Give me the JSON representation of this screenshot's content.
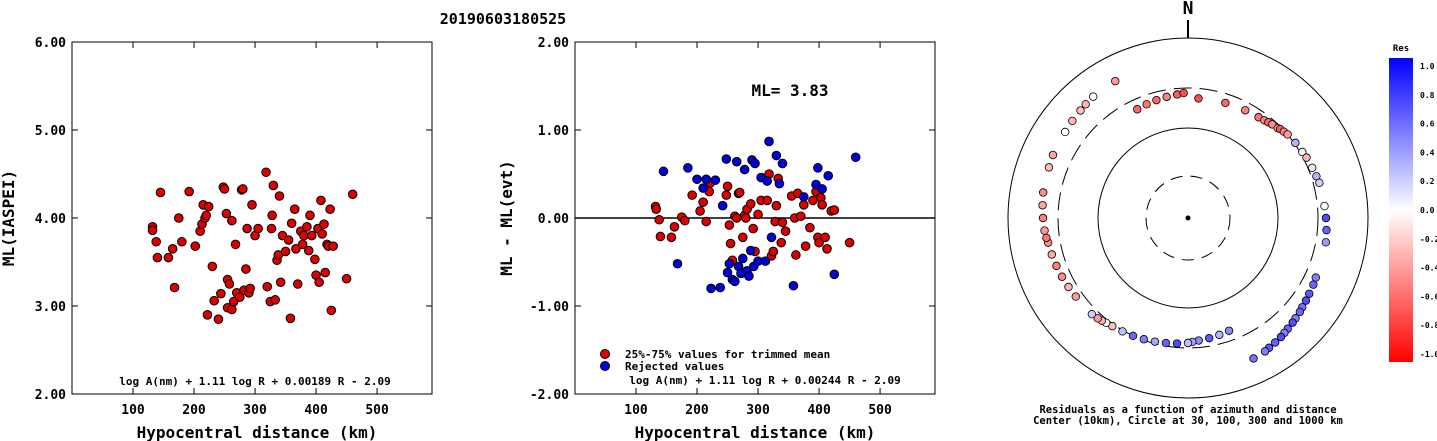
{
  "title": "20190603180525",
  "chart_data": [
    {
      "type": "scatter",
      "xlabel": "Hypocentral distance (km)",
      "ylabel": "ML(IASPEI)",
      "xlim": [
        0,
        590
      ],
      "ylim": [
        2.0,
        6.0
      ],
      "x_ticks": [
        "100",
        "200",
        "300",
        "400",
        "500"
      ],
      "y_ticks": [
        "2.00",
        "3.00",
        "4.00",
        "5.00",
        "6.00"
      ],
      "formula": "log A(nm) + 1.11 log R + 0.00189 R - 2.09",
      "points": [
        [
          132,
          3.9
        ],
        [
          132,
          3.86
        ],
        [
          138,
          3.73
        ],
        [
          140,
          3.55
        ],
        [
          145,
          4.29
        ],
        [
          158,
          3.55
        ],
        [
          165,
          3.65
        ],
        [
          168,
          3.21
        ],
        [
          175,
          4.0
        ],
        [
          180,
          3.73
        ],
        [
          192,
          4.3
        ],
        [
          202,
          3.68
        ],
        [
          210,
          3.85
        ],
        [
          213,
          3.93
        ],
        [
          215,
          4.15
        ],
        [
          218,
          4.0
        ],
        [
          220,
          4.03
        ],
        [
          222,
          2.9
        ],
        [
          224,
          4.13
        ],
        [
          230,
          3.45
        ],
        [
          233,
          3.06
        ],
        [
          240,
          2.85
        ],
        [
          244,
          3.14
        ],
        [
          248,
          4.35
        ],
        [
          250,
          4.33
        ],
        [
          253,
          4.05
        ],
        [
          255,
          3.3
        ],
        [
          255,
          2.98
        ],
        [
          258,
          3.25
        ],
        [
          262,
          3.97
        ],
        [
          262,
          2.96
        ],
        [
          265,
          3.05
        ],
        [
          268,
          3.7
        ],
        [
          270,
          3.15
        ],
        [
          275,
          3.1
        ],
        [
          278,
          4.32
        ],
        [
          280,
          4.33
        ],
        [
          282,
          3.18
        ],
        [
          285,
          3.42
        ],
        [
          287,
          3.88
        ],
        [
          290,
          3.15
        ],
        [
          292,
          3.2
        ],
        [
          295,
          4.15
        ],
        [
          300,
          3.8
        ],
        [
          305,
          3.88
        ],
        [
          318,
          4.52
        ],
        [
          320,
          3.22
        ],
        [
          325,
          3.05
        ],
        [
          327,
          3.88
        ],
        [
          328,
          4.03
        ],
        [
          330,
          4.37
        ],
        [
          333,
          3.07
        ],
        [
          336,
          3.52
        ],
        [
          338,
          3.58
        ],
        [
          340,
          4.25
        ],
        [
          342,
          3.27
        ],
        [
          345,
          3.8
        ],
        [
          350,
          3.62
        ],
        [
          355,
          3.75
        ],
        [
          358,
          2.86
        ],
        [
          360,
          3.94
        ],
        [
          365,
          4.1
        ],
        [
          367,
          3.65
        ],
        [
          370,
          3.25
        ],
        [
          375,
          3.85
        ],
        [
          378,
          3.7
        ],
        [
          380,
          3.8
        ],
        [
          385,
          3.9
        ],
        [
          388,
          3.63
        ],
        [
          390,
          4.03
        ],
        [
          393,
          3.8
        ],
        [
          398,
          3.53
        ],
        [
          400,
          3.35
        ],
        [
          403,
          3.88
        ],
        [
          405,
          3.27
        ],
        [
          408,
          4.2
        ],
        [
          410,
          3.82
        ],
        [
          413,
          3.93
        ],
        [
          415,
          3.38
        ],
        [
          418,
          3.7
        ],
        [
          420,
          3.68
        ],
        [
          423,
          4.1
        ],
        [
          425,
          2.95
        ],
        [
          428,
          3.68
        ],
        [
          450,
          3.31
        ],
        [
          460,
          4.27
        ]
      ]
    },
    {
      "type": "scatter",
      "xlabel": "Hypocentral distance (km)",
      "ylabel": "ML - ML(evt)",
      "xlim": [
        0,
        590
      ],
      "ylim": [
        -2.0,
        2.0
      ],
      "x_ticks": [
        "100",
        "200",
        "300",
        "400",
        "500"
      ],
      "y_ticks": [
        "-2.00",
        "-1.00",
        "0.00",
        "1.00",
        "2.00"
      ],
      "annotation": "ML= 3.83",
      "formula": "log A(nm) + 1.11 log R + 0.00244 R - 2.09",
      "legend": [
        "25%-75% values for trimmed mean",
        "Rejected values"
      ],
      "series": [
        {
          "name": "25%-75% values for trimmed mean",
          "color": "#dd0000",
          "points": [
            [
              132,
              0.13
            ],
            [
              133,
              0.1
            ],
            [
              138,
              -0.02
            ],
            [
              140,
              -0.21
            ],
            [
              158,
              -0.22
            ],
            [
              163,
              -0.1
            ],
            [
              175,
              0.01
            ],
            [
              180,
              -0.03
            ],
            [
              192,
              0.26
            ],
            [
              205,
              0.08
            ],
            [
              210,
              0.18
            ],
            [
              215,
              -0.04
            ],
            [
              220,
              0.3
            ],
            [
              222,
              0.4
            ],
            [
              248,
              0.26
            ],
            [
              250,
              0.36
            ],
            [
              253,
              -0.08
            ],
            [
              255,
              -0.29
            ],
            [
              258,
              -0.48
            ],
            [
              262,
              0.02
            ],
            [
              265,
              0.0
            ],
            [
              268,
              0.28
            ],
            [
              270,
              0.29
            ],
            [
              275,
              -0.22
            ],
            [
              278,
              0.03
            ],
            [
              280,
              0.0
            ],
            [
              282,
              0.1
            ],
            [
              288,
              0.16
            ],
            [
              292,
              -0.12
            ],
            [
              295,
              -0.38
            ],
            [
              300,
              0.04
            ],
            [
              305,
              0.2
            ],
            [
              315,
              0.2
            ],
            [
              318,
              0.5
            ],
            [
              322,
              -0.43
            ],
            [
              325,
              -0.38
            ],
            [
              328,
              -0.04
            ],
            [
              330,
              0.14
            ],
            [
              333,
              0.45
            ],
            [
              338,
              -0.28
            ],
            [
              340,
              -0.05
            ],
            [
              345,
              -0.15
            ],
            [
              355,
              0.25
            ],
            [
              360,
              0.0
            ],
            [
              362,
              -0.42
            ],
            [
              365,
              0.28
            ],
            [
              370,
              0.02
            ],
            [
              375,
              0.15
            ],
            [
              378,
              -0.32
            ],
            [
              385,
              -0.11
            ],
            [
              390,
              0.2
            ],
            [
              395,
              0.3
            ],
            [
              398,
              -0.22
            ],
            [
              400,
              -0.28
            ],
            [
              403,
              0.23
            ],
            [
              405,
              0.15
            ],
            [
              410,
              -0.22
            ],
            [
              413,
              -0.35
            ],
            [
              420,
              0.08
            ],
            [
              425,
              0.09
            ],
            [
              450,
              -0.28
            ]
          ]
        },
        {
          "name": "Rejected values",
          "color": "#0000dd",
          "points": [
            [
              145,
              0.53
            ],
            [
              168,
              -0.52
            ],
            [
              185,
              0.57
            ],
            [
              200,
              0.44
            ],
            [
              210,
              0.34
            ],
            [
              215,
              0.44
            ],
            [
              223,
              -0.8
            ],
            [
              230,
              0.43
            ],
            [
              238,
              -0.79
            ],
            [
              242,
              0.14
            ],
            [
              248,
              0.67
            ],
            [
              250,
              -0.62
            ],
            [
              253,
              -0.52
            ],
            [
              258,
              -0.7
            ],
            [
              262,
              -0.72
            ],
            [
              265,
              0.64
            ],
            [
              268,
              -0.55
            ],
            [
              272,
              -0.63
            ],
            [
              275,
              -0.46
            ],
            [
              278,
              0.55
            ],
            [
              282,
              -0.6
            ],
            [
              285,
              -0.66
            ],
            [
              288,
              -0.37
            ],
            [
              290,
              0.66
            ],
            [
              293,
              -0.55
            ],
            [
              295,
              0.62
            ],
            [
              300,
              -0.49
            ],
            [
              305,
              0.46
            ],
            [
              312,
              -0.49
            ],
            [
              315,
              0.42
            ],
            [
              318,
              0.87
            ],
            [
              322,
              -0.22
            ],
            [
              330,
              0.71
            ],
            [
              335,
              0.39
            ],
            [
              340,
              0.62
            ],
            [
              358,
              -0.77
            ],
            [
              375,
              0.24
            ],
            [
              395,
              0.38
            ],
            [
              398,
              0.57
            ],
            [
              405,
              0.33
            ],
            [
              415,
              0.48
            ],
            [
              425,
              -0.64
            ],
            [
              460,
              0.69
            ]
          ]
        }
      ]
    },
    {
      "type": "scatter",
      "subtype": "polar",
      "north_label": "N",
      "caption_lines": [
        "Residuals as a function of azimuth and distance",
        "Center (10km), Circle at 30, 100, 300 and 1000 km"
      ],
      "colorbar": {
        "title": "Res",
        "labels": [
          "1.0",
          "0.8",
          "0.6",
          "0.4",
          "0.2",
          "0.0",
          "-0.2",
          "-0.4",
          "-0.6",
          "-0.8",
          "-1.0"
        ],
        "max_color": "#0000ff",
        "min_color": "#ff0000"
      },
      "points": [
        [
          5,
          -0.7
        ],
        [
          18,
          -0.6
        ],
        [
          28,
          -0.5
        ],
        [
          35,
          -0.55
        ],
        [
          38,
          -0.5
        ],
        [
          40,
          -0.6
        ],
        [
          42,
          -0.45
        ],
        [
          45,
          -0.35
        ],
        [
          46,
          -0.65
        ],
        [
          48,
          -0.5
        ],
        [
          50,
          -0.4
        ],
        [
          55,
          0.3
        ],
        [
          60,
          0.0
        ],
        [
          63,
          -0.3
        ],
        [
          68,
          0.1
        ],
        [
          72,
          0.3
        ],
        [
          75,
          0.2
        ],
        [
          85,
          0.0
        ],
        [
          90,
          0.7
        ],
        [
          95,
          0.6
        ],
        [
          100,
          0.4
        ],
        [
          115,
          0.5
        ],
        [
          118,
          0.6
        ],
        [
          122,
          0.65
        ],
        [
          125,
          0.7
        ],
        [
          128,
          0.55
        ],
        [
          130,
          0.6
        ],
        [
          133,
          0.5
        ],
        [
          135,
          0.7
        ],
        [
          138,
          0.6
        ],
        [
          140,
          0.5
        ],
        [
          142,
          0.7
        ],
        [
          145,
          0.6
        ],
        [
          148,
          0.65
        ],
        [
          150,
          0.5
        ],
        [
          155,
          0.55
        ],
        [
          160,
          0.45
        ],
        [
          165,
          0.3
        ],
        [
          170,
          0.65
        ],
        [
          175,
          0.45
        ],
        [
          178,
          0.35
        ],
        [
          180,
          0.25
        ],
        [
          185,
          0.7
        ],
        [
          190,
          0.6
        ],
        [
          195,
          0.35
        ],
        [
          200,
          0.5
        ],
        [
          205,
          0.6
        ],
        [
          210,
          0.25
        ],
        [
          215,
          -0.25
        ],
        [
          218,
          0.0
        ],
        [
          220,
          -0.3
        ],
        [
          222,
          -0.4
        ],
        [
          225,
          0.2
        ],
        [
          235,
          -0.4
        ],
        [
          240,
          -0.3
        ],
        [
          245,
          -0.45
        ],
        [
          250,
          -0.5
        ],
        [
          255,
          -0.35
        ],
        [
          260,
          -0.45
        ],
        [
          262,
          -0.55
        ],
        [
          265,
          -0.4
        ],
        [
          270,
          -0.5
        ],
        [
          275,
          -0.35
        ],
        [
          280,
          -0.45
        ],
        [
          290,
          -0.25
        ],
        [
          295,
          -0.35
        ],
        [
          305,
          0.0
        ],
        [
          310,
          -0.3
        ],
        [
          315,
          -0.25
        ],
        [
          318,
          -0.3
        ],
        [
          322,
          0.0
        ],
        [
          332,
          -0.4
        ],
        [
          335,
          -0.6
        ],
        [
          340,
          -0.55
        ],
        [
          345,
          -0.6
        ],
        [
          350,
          -0.5
        ],
        [
          355,
          -0.65
        ],
        [
          358,
          -0.7
        ]
      ]
    }
  ]
}
